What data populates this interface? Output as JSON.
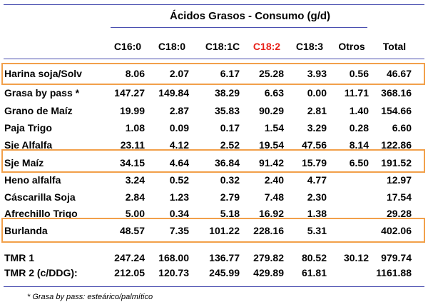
{
  "title": "Ácidos Grasos - Consumo (g/d)",
  "headers": [
    "C16:0",
    "C18:0",
    "C18:1C",
    "C18:2",
    "C18:3",
    "Otros",
    "Total"
  ],
  "header_colors": [
    "#000000",
    "#000000",
    "#000000",
    "#e8221a",
    "#000000",
    "#000000",
    "#000000"
  ],
  "highlight_color": "#f2a04a",
  "rows": [
    {
      "label": "Harina soja/Solv",
      "values": [
        "8.06",
        "2.07",
        "6.17",
        "25.28",
        "3.93",
        "0.56",
        "46.67"
      ]
    },
    {
      "label": "Grasa by pass *",
      "values": [
        "147.27",
        "149.84",
        "38.29",
        "6.63",
        "0.00",
        "11.71",
        "368.16"
      ]
    },
    {
      "label": "Grano de Maíz",
      "values": [
        "19.99",
        "2.87",
        "35.83",
        "90.29",
        "2.81",
        "1.40",
        "154.66"
      ]
    },
    {
      "label": "Paja Trigo",
      "values": [
        "1.08",
        "0.09",
        "0.17",
        "1.54",
        "3.29",
        "0.28",
        "6.60"
      ]
    },
    {
      "label": "Sje Alfalfa",
      "values": [
        "23.11",
        "4.12",
        "2.52",
        "19.54",
        "47.56",
        "8.14",
        "122.86"
      ]
    },
    {
      "label": "Sje Maíz",
      "values": [
        "34.15",
        "4.64",
        "36.84",
        "91.42",
        "15.79",
        "6.50",
        "191.52"
      ]
    },
    {
      "label": "Heno alfalfa",
      "values": [
        "3.24",
        "0.52",
        "0.32",
        "2.40",
        "4.77",
        "",
        "12.97"
      ]
    },
    {
      "label": "Cáscarilla Soja",
      "values": [
        "2.84",
        "1.23",
        "2.79",
        "7.48",
        "2.30",
        "",
        "17.54"
      ]
    },
    {
      "label": "Afrechillo Trigo",
      "values": [
        "5.00",
        "0.34",
        "5.18",
        "16.92",
        "1.38",
        "",
        "29.28"
      ]
    },
    {
      "label": "Burlanda",
      "values": [
        "48.57",
        "7.35",
        "101.22",
        "228.16",
        "5.31",
        "",
        "402.06"
      ]
    },
    {
      "label": "TMR 1",
      "values": [
        "247.24",
        "168.00",
        "136.77",
        "279.82",
        "80.52",
        "30.12",
        "979.74"
      ]
    },
    {
      "label": "TMR 2 (c/DDG):",
      "values": [
        "212.05",
        "120.73",
        "245.99",
        "429.89",
        "61.81",
        "",
        "1161.88"
      ]
    }
  ],
  "footnote": "* Grasa by pass: esteárico/palmítico"
}
